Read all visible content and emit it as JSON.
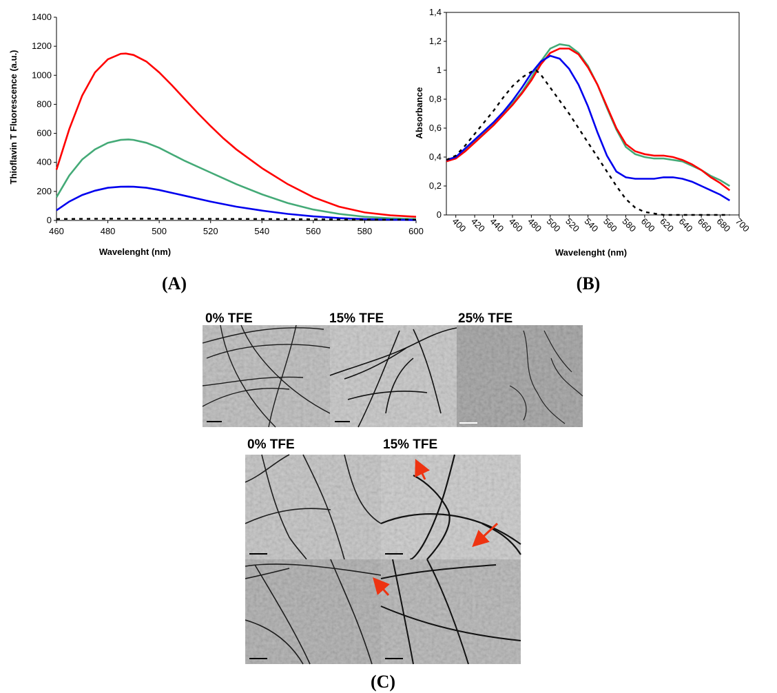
{
  "chart_data": [
    {
      "panel": "(A)",
      "type": "line",
      "xlabel": "Wavelenght (nm)",
      "ylabel": "Thioflavin T Fluorescence (a.u.)",
      "xlim": [
        460,
        600
      ],
      "ylim": [
        0,
        1400
      ],
      "x_ticks": [
        "460",
        "480",
        "500",
        "520",
        "540",
        "560",
        "580",
        "600"
      ],
      "y_ticks": [
        "0",
        "200",
        "400",
        "600",
        "800",
        "1000",
        "1200",
        "1400"
      ],
      "series": [
        {
          "color": "#ff0000",
          "style": "solid",
          "x": [
            460,
            465,
            470,
            475,
            480,
            485,
            487,
            490,
            495,
            500,
            505,
            510,
            515,
            520,
            525,
            530,
            540,
            550,
            560,
            570,
            580,
            590,
            600
          ],
          "y": [
            350,
            630,
            860,
            1020,
            1110,
            1148,
            1150,
            1140,
            1095,
            1020,
            930,
            835,
            740,
            650,
            565,
            490,
            360,
            250,
            160,
            95,
            55,
            35,
            25
          ]
        },
        {
          "color": "#44aa77",
          "style": "solid",
          "x": [
            460,
            465,
            470,
            475,
            480,
            485,
            488,
            490,
            495,
            500,
            510,
            520,
            530,
            540,
            550,
            560,
            570,
            580,
            590,
            600
          ],
          "y": [
            160,
            310,
            420,
            490,
            535,
            555,
            558,
            555,
            535,
            500,
            410,
            330,
            250,
            180,
            120,
            75,
            45,
            25,
            15,
            10
          ]
        },
        {
          "color": "#0000ee",
          "style": "solid",
          "x": [
            460,
            465,
            470,
            475,
            480,
            485,
            488,
            490,
            495,
            500,
            510,
            520,
            530,
            540,
            550,
            560,
            570,
            580,
            590,
            600
          ],
          "y": [
            70,
            130,
            175,
            205,
            225,
            232,
            233,
            232,
            225,
            210,
            170,
            130,
            95,
            68,
            45,
            28,
            16,
            9,
            5,
            3
          ]
        },
        {
          "color": "#000000",
          "style": "dashed",
          "x": [
            460,
            480,
            500,
            520,
            540,
            560,
            580,
            600
          ],
          "y": [
            10,
            12,
            12,
            11,
            10,
            8,
            6,
            5
          ]
        }
      ]
    },
    {
      "panel": "(B)",
      "type": "line",
      "xlabel": "Wavelenght (nm)",
      "ylabel": "Absorbance",
      "xlim": [
        390,
        700
      ],
      "ylim": [
        0,
        1.4
      ],
      "x_ticks": [
        "400",
        "420",
        "440",
        "460",
        "480",
        "500",
        "520",
        "540",
        "560",
        "580",
        "600",
        "620",
        "640",
        "660",
        "680",
        "700"
      ],
      "y_ticks": [
        "0",
        "0,2",
        "0,4",
        "0,6",
        "0,8",
        "1",
        "1,2",
        "1,4"
      ],
      "series": [
        {
          "color": "#44aa77",
          "style": "solid",
          "x": [
            390,
            400,
            410,
            420,
            430,
            440,
            450,
            460,
            470,
            480,
            490,
            500,
            510,
            520,
            530,
            540,
            550,
            560,
            570,
            580,
            590,
            600,
            610,
            620,
            630,
            640,
            650,
            660,
            670,
            680,
            690
          ],
          "y": [
            0.38,
            0.4,
            0.45,
            0.51,
            0.57,
            0.63,
            0.7,
            0.77,
            0.85,
            0.95,
            1.06,
            1.15,
            1.18,
            1.17,
            1.12,
            1.03,
            0.9,
            0.74,
            0.59,
            0.47,
            0.42,
            0.4,
            0.39,
            0.39,
            0.38,
            0.37,
            0.34,
            0.31,
            0.27,
            0.24,
            0.2
          ]
        },
        {
          "color": "#ff0000",
          "style": "solid",
          "x": [
            390,
            400,
            410,
            420,
            430,
            440,
            450,
            460,
            470,
            480,
            490,
            500,
            510,
            520,
            530,
            540,
            550,
            560,
            570,
            580,
            590,
            600,
            610,
            620,
            630,
            640,
            650,
            660,
            670,
            680,
            690
          ],
          "y": [
            0.37,
            0.39,
            0.44,
            0.5,
            0.56,
            0.62,
            0.69,
            0.76,
            0.84,
            0.93,
            1.04,
            1.12,
            1.15,
            1.15,
            1.11,
            1.02,
            0.9,
            0.75,
            0.6,
            0.49,
            0.44,
            0.42,
            0.41,
            0.41,
            0.4,
            0.38,
            0.35,
            0.31,
            0.26,
            0.22,
            0.17
          ]
        },
        {
          "color": "#0000ee",
          "style": "solid",
          "x": [
            390,
            400,
            410,
            420,
            430,
            440,
            450,
            460,
            470,
            480,
            490,
            500,
            510,
            520,
            530,
            540,
            550,
            560,
            570,
            580,
            590,
            600,
            610,
            620,
            630,
            640,
            650,
            660,
            670,
            680,
            690
          ],
          "y": [
            0.38,
            0.4,
            0.46,
            0.52,
            0.58,
            0.64,
            0.71,
            0.79,
            0.88,
            0.98,
            1.06,
            1.1,
            1.08,
            1.01,
            0.9,
            0.75,
            0.57,
            0.41,
            0.3,
            0.26,
            0.25,
            0.25,
            0.25,
            0.26,
            0.26,
            0.25,
            0.23,
            0.2,
            0.17,
            0.14,
            0.1
          ]
        },
        {
          "color": "#000000",
          "style": "dashed",
          "x": [
            390,
            400,
            410,
            420,
            430,
            440,
            450,
            460,
            470,
            480,
            485,
            490,
            500,
            510,
            520,
            530,
            540,
            550,
            560,
            570,
            580,
            590,
            600,
            610,
            620,
            640,
            660,
            680,
            690
          ],
          "y": [
            0.38,
            0.41,
            0.48,
            0.56,
            0.64,
            0.72,
            0.81,
            0.89,
            0.95,
            0.99,
            1.0,
            0.97,
            0.88,
            0.79,
            0.7,
            0.6,
            0.5,
            0.4,
            0.3,
            0.2,
            0.11,
            0.05,
            0.02,
            0.01,
            0.0,
            0.0,
            0.0,
            0.0,
            0.0
          ]
        }
      ]
    }
  ],
  "panels": {
    "a_label": "(A)",
    "b_label": "(B)",
    "c_label": "(C)"
  },
  "micrographs": {
    "row1": [
      "0% TFE",
      "15% TFE",
      "25% TFE"
    ],
    "row2": [
      "0% TFE",
      "15% TFE"
    ]
  }
}
